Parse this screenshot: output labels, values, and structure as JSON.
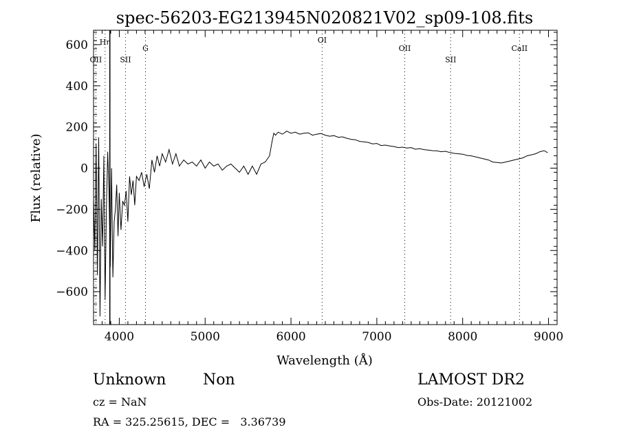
{
  "chart_data": {
    "type": "line",
    "title": "spec-56203-EG213945N020821V02_sp09-108.fits",
    "xlabel": "Wavelength (Å)",
    "ylabel": "Flux (relative)",
    "xlim": [
      3700,
      9100
    ],
    "ylim": [
      -760,
      670
    ],
    "x_ticks": [
      4000,
      5000,
      6000,
      7000,
      8000,
      9000
    ],
    "x_tick_labels": [
      "4000",
      "5000",
      "6000",
      "7000",
      "8000",
      "9000"
    ],
    "y_ticks": [
      -600,
      -400,
      -200,
      0,
      200,
      400,
      600
    ],
    "y_tick_labels": [
      "−600",
      "−400",
      "−200",
      "0",
      "200",
      "400",
      "600"
    ],
    "grid": false,
    "spectral_lines": [
      {
        "label": "OII",
        "wavelength": 3727,
        "label_y": 515
      },
      {
        "label": "Hη",
        "wavelength": 3835,
        "label_y": 600
      },
      {
        "label": "SII",
        "wavelength": 4072,
        "label_y": 515
      },
      {
        "label": "G",
        "wavelength": 4305,
        "label_y": 570
      },
      {
        "label": "OI",
        "wavelength": 6363,
        "label_y": 610
      },
      {
        "label": "OII",
        "wavelength": 7325,
        "label_y": 570
      },
      {
        "label": "SII",
        "wavelength": 7860,
        "label_y": 515
      },
      {
        "label": "CaII",
        "wavelength": 8662,
        "label_y": 570
      }
    ],
    "solid_line_wavelengths": [
      3890
    ],
    "series": [
      {
        "x": [
          3700,
          3715,
          3730,
          3745,
          3760,
          3775,
          3790,
          3805,
          3820,
          3835,
          3850,
          3865,
          3880,
          3895,
          3910,
          3925,
          3940,
          3955,
          3970,
          3985,
          4000,
          4020,
          4040,
          4060,
          4080,
          4100,
          4120,
          4140,
          4160,
          4180,
          4200,
          4230,
          4260,
          4290,
          4320,
          4350,
          4380,
          4410,
          4440,
          4470,
          4500,
          4540,
          4580,
          4620,
          4660,
          4700,
          4750,
          4800,
          4850,
          4900,
          4950,
          5000,
          5050,
          5100,
          5150,
          5200,
          5250,
          5300,
          5350,
          5400,
          5450,
          5500,
          5550,
          5600,
          5650,
          5700,
          5750,
          5780,
          5800,
          5820,
          5850,
          5900,
          5950,
          6000,
          6050,
          6100,
          6150,
          6200,
          6250,
          6300,
          6350,
          6400,
          6450,
          6500,
          6550,
          6600,
          6650,
          6700,
          6750,
          6800,
          6850,
          6900,
          6950,
          7000,
          7050,
          7100,
          7150,
          7200,
          7250,
          7300,
          7350,
          7400,
          7450,
          7500,
          7550,
          7600,
          7650,
          7700,
          7750,
          7800,
          7850,
          7900,
          7950,
          8000,
          8050,
          8100,
          8150,
          8200,
          8250,
          8300,
          8350,
          8400,
          8450,
          8500,
          8550,
          8600,
          8650,
          8700,
          8750,
          8800,
          8850,
          8900,
          8950,
          8990
        ],
        "y": [
          -150,
          -400,
          120,
          -520,
          150,
          -720,
          -150,
          -380,
          60,
          -640,
          -200,
          80,
          -120,
          -480,
          0,
          -530,
          -260,
          -200,
          -80,
          -330,
          -120,
          -300,
          -160,
          -180,
          -110,
          -260,
          -40,
          -130,
          -60,
          -180,
          -40,
          -60,
          -20,
          -90,
          -30,
          -100,
          40,
          -20,
          60,
          10,
          70,
          30,
          90,
          20,
          70,
          10,
          40,
          20,
          30,
          10,
          40,
          0,
          30,
          10,
          20,
          -10,
          10,
          20,
          0,
          -20,
          10,
          -30,
          10,
          -30,
          20,
          30,
          60,
          130,
          170,
          160,
          175,
          165,
          180,
          170,
          175,
          165,
          170,
          172,
          160,
          165,
          168,
          160,
          155,
          158,
          150,
          152,
          145,
          140,
          138,
          130,
          128,
          125,
          118,
          120,
          110,
          112,
          108,
          105,
          100,
          102,
          98,
          100,
          92,
          95,
          90,
          88,
          85,
          84,
          80,
          82,
          76,
          72,
          70,
          68,
          62,
          60,
          55,
          50,
          45,
          40,
          30,
          28,
          25,
          30,
          35,
          40,
          45,
          50,
          60,
          65,
          70,
          80,
          85,
          75
        ]
      }
    ]
  },
  "footer": {
    "classification": "Unknown",
    "subclass": "Non",
    "survey": "LAMOST DR2",
    "cz": "cz = NaN",
    "obs_date": "Obs-Date: 20121002",
    "coords": "RA = 325.25615, DEC =   3.36739"
  }
}
